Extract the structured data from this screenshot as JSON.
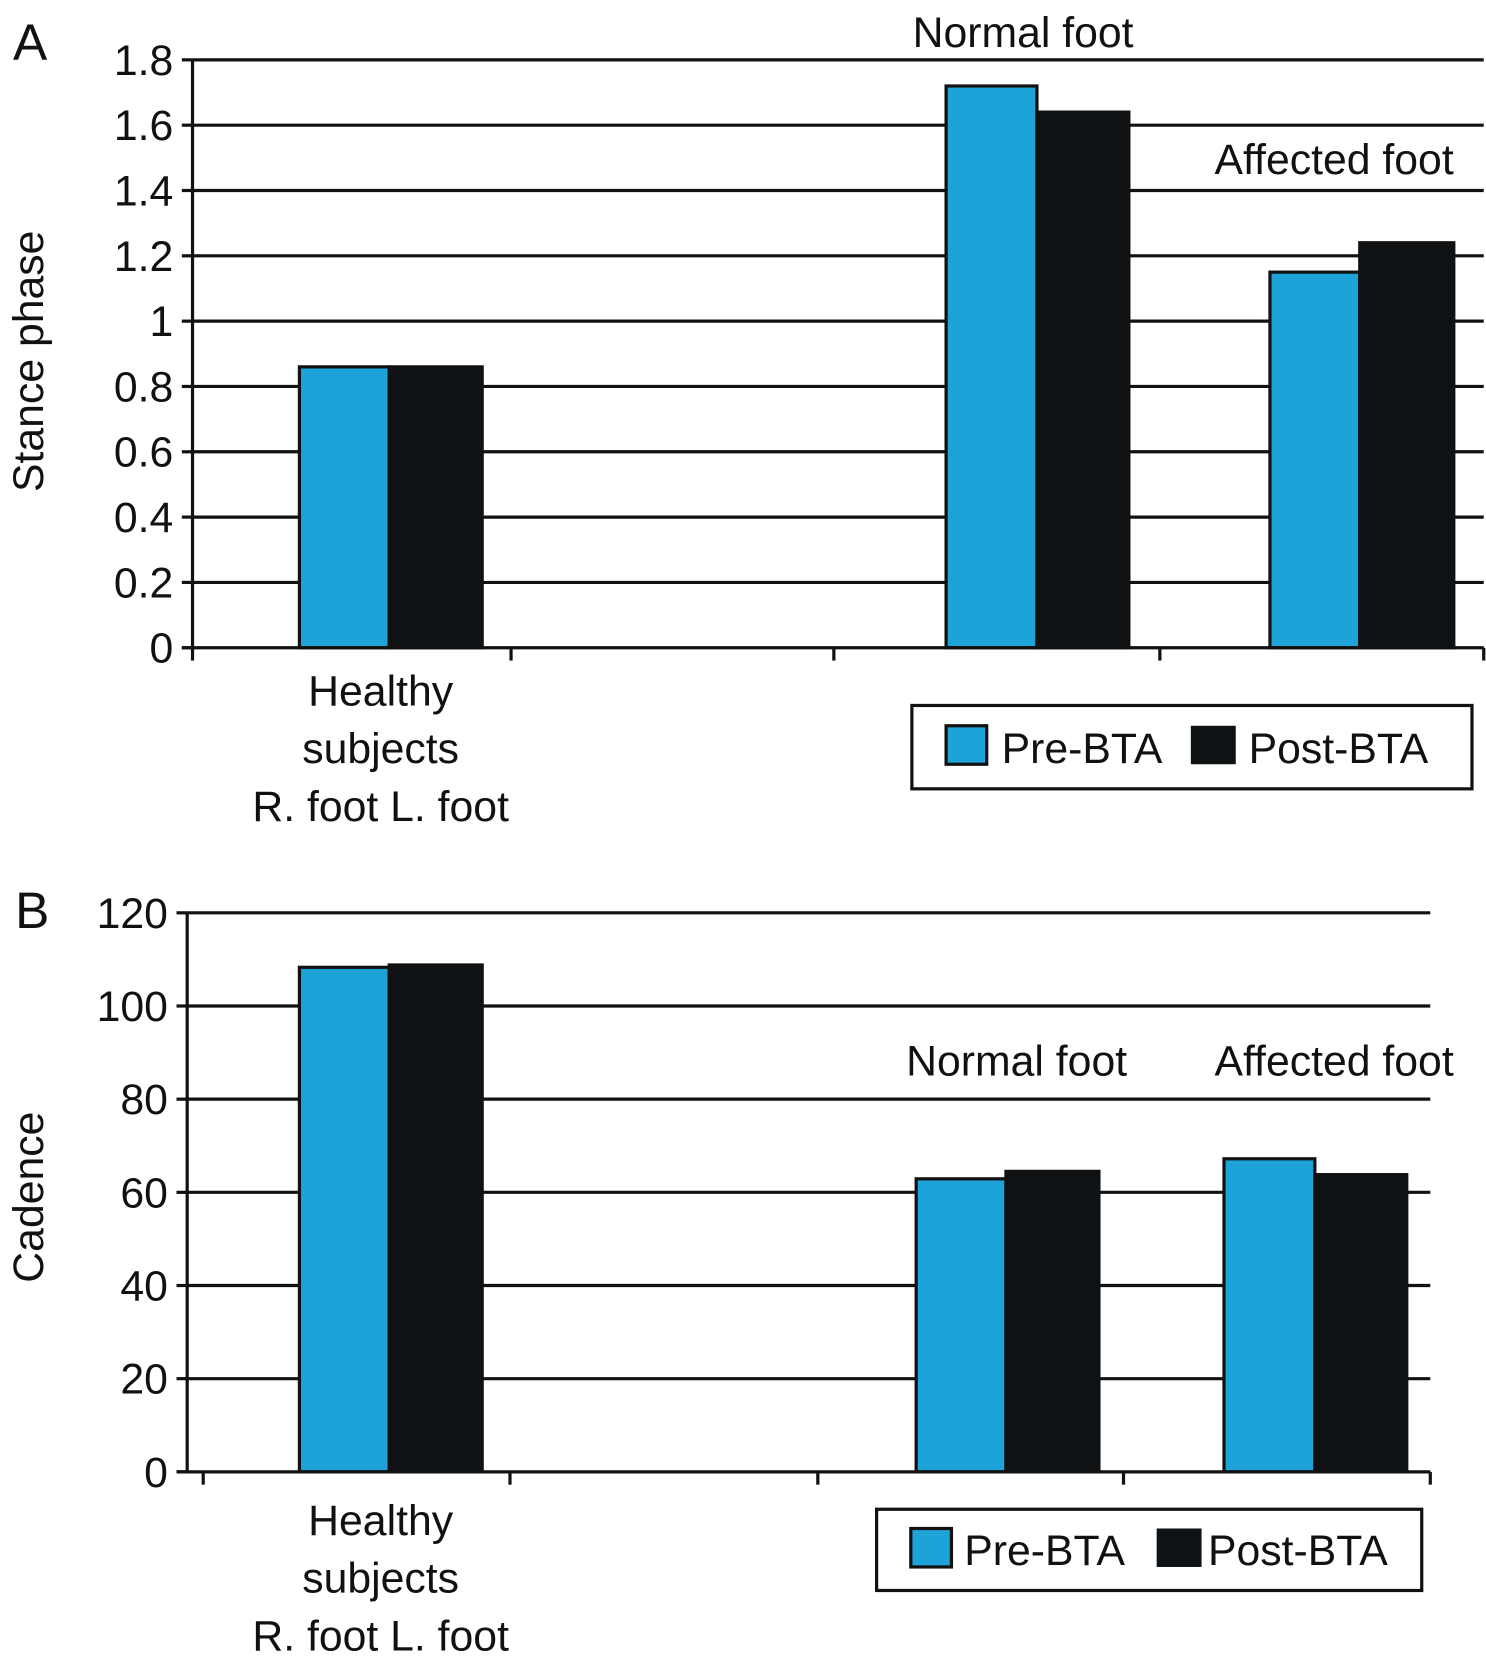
{
  "colors": {
    "pre": "#1ea3d8",
    "post": "#0f1215",
    "axis": "#111111"
  },
  "chart_data": [
    {
      "type": "bar",
      "panel_label": "A",
      "ylabel": "Stance phase",
      "ylim": [
        0,
        1.8
      ],
      "yticks": [
        "0",
        "0.2",
        "0.4",
        "0.6",
        "0.8",
        "1",
        "1.2",
        "1.4",
        "1.6",
        "1.8"
      ],
      "grid": true,
      "legend": {
        "placement": "bottom-right",
        "entries": [
          "Pre-BTA",
          "Post-BTA"
        ]
      },
      "xlabel_lines": [
        "Healthy",
        "subjects",
        "R. foot L. foot"
      ],
      "annotations": [
        "Normal foot",
        "Affected foot"
      ],
      "categories": [
        "Healthy subjects",
        "",
        "Normal foot",
        "Affected foot"
      ],
      "series": [
        {
          "name": "Pre-BTA",
          "values": [
            0.86,
            null,
            1.72,
            1.15
          ]
        },
        {
          "name": "Post-BTA",
          "values": [
            0.86,
            null,
            1.64,
            1.24
          ]
        }
      ]
    },
    {
      "type": "bar",
      "panel_label": "B",
      "ylabel": "Cadence",
      "ylim": [
        0,
        120
      ],
      "yticks": [
        "0",
        "20",
        "40",
        "60",
        "80",
        "100",
        "120"
      ],
      "grid": true,
      "legend": {
        "placement": "bottom-right",
        "entries": [
          "Pre-BTA",
          "Post-BTA"
        ]
      },
      "xlabel_lines": [
        "Healthy",
        "subjects",
        "R. foot L. foot"
      ],
      "annotations": [
        "Normal foot",
        "Affected foot"
      ],
      "categories": [
        "Healthy subjects",
        "",
        "Normal foot",
        "Affected foot"
      ],
      "series": [
        {
          "name": "Pre-BTA",
          "values": [
            108.3,
            null,
            62.9,
            67.2
          ]
        },
        {
          "name": "Post-BTA",
          "values": [
            108.8,
            null,
            64.5,
            63.8
          ]
        }
      ]
    }
  ]
}
